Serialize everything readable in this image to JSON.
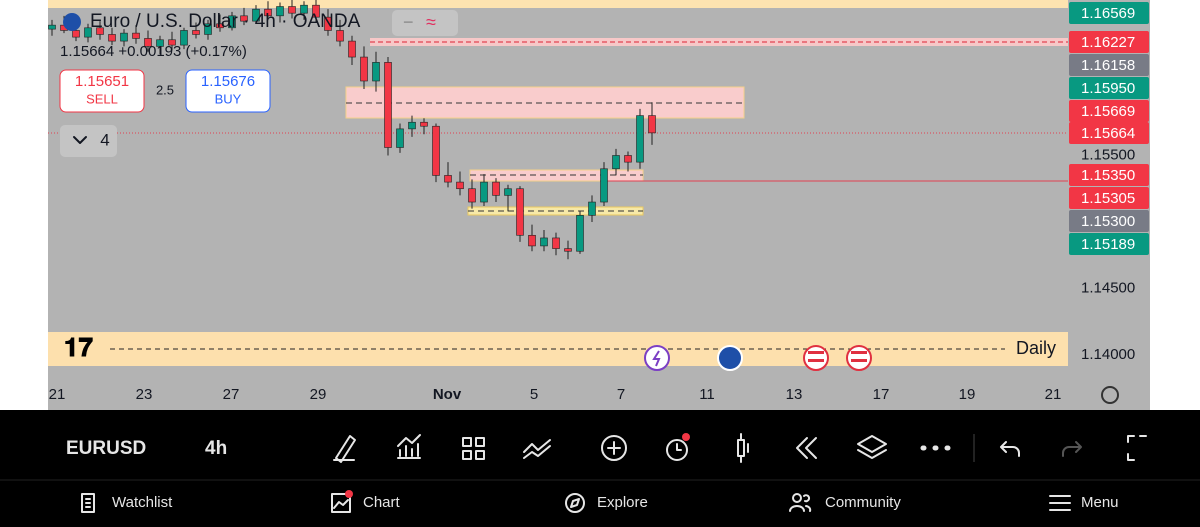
{
  "header": {
    "symbol_title": "Euro / U.S. Dollar · 4h · OANDA",
    "price_change": "1.15664 +0.00193 (+0.17%)",
    "sell_price": "1.15651",
    "sell_label": "SELL",
    "spread": "2.5",
    "buy_price": "1.15676",
    "buy_label": "BUY",
    "collapse_count": "4"
  },
  "chart": {
    "ylim": [
      1.13827,
      1.16669
    ],
    "up_color": "#089981",
    "down_color": "#f23645",
    "candles": [
      [
        1.1645,
        1.1652,
        1.164,
        1.1648
      ],
      [
        1.1648,
        1.1655,
        1.1642,
        1.1644
      ],
      [
        1.1644,
        1.165,
        1.1636,
        1.1639
      ],
      [
        1.1639,
        1.1649,
        1.1635,
        1.1646
      ],
      [
        1.1646,
        1.1651,
        1.1637,
        1.1641
      ],
      [
        1.1641,
        1.1646,
        1.1633,
        1.1636
      ],
      [
        1.1636,
        1.1645,
        1.1632,
        1.1642
      ],
      [
        1.1642,
        1.1648,
        1.1634,
        1.1638
      ],
      [
        1.1638,
        1.1644,
        1.1628,
        1.1632
      ],
      [
        1.1632,
        1.164,
        1.1626,
        1.1637
      ],
      [
        1.1637,
        1.1643,
        1.1629,
        1.1633
      ],
      [
        1.1633,
        1.1646,
        1.163,
        1.1644
      ],
      [
        1.1644,
        1.165,
        1.1638,
        1.1641
      ],
      [
        1.1641,
        1.1652,
        1.1637,
        1.1649
      ],
      [
        1.1649,
        1.1656,
        1.1643,
        1.1646
      ],
      [
        1.1646,
        1.1658,
        1.1644,
        1.1655
      ],
      [
        1.1655,
        1.1661,
        1.1648,
        1.1651
      ],
      [
        1.1651,
        1.1663,
        1.1649,
        1.166
      ],
      [
        1.166,
        1.1666,
        1.1652,
        1.1655
      ],
      [
        1.1655,
        1.1665,
        1.165,
        1.1662
      ],
      [
        1.1662,
        1.1667,
        1.1653,
        1.1657
      ],
      [
        1.1657,
        1.1666,
        1.1652,
        1.1663
      ],
      [
        1.1663,
        1.1667,
        1.165,
        1.1654
      ],
      [
        1.1654,
        1.166,
        1.164,
        1.1644
      ],
      [
        1.1644,
        1.1652,
        1.1632,
        1.1636
      ],
      [
        1.1636,
        1.164,
        1.1618,
        1.1624
      ],
      [
        1.1624,
        1.1632,
        1.16,
        1.1606
      ],
      [
        1.1606,
        1.1628,
        1.1598,
        1.162
      ],
      [
        1.162,
        1.1624,
        1.155,
        1.1556
      ],
      [
        1.1556,
        1.1574,
        1.1552,
        1.157
      ],
      [
        1.157,
        1.158,
        1.1564,
        1.1575
      ],
      [
        1.1575,
        1.1578,
        1.1566,
        1.1572
      ],
      [
        1.1572,
        1.1574,
        1.153,
        1.1535
      ],
      [
        1.1535,
        1.1545,
        1.1526,
        1.153
      ],
      [
        1.153,
        1.1538,
        1.152,
        1.1525
      ],
      [
        1.1525,
        1.1532,
        1.151,
        1.1515
      ],
      [
        1.1515,
        1.1536,
        1.1512,
        1.153
      ],
      [
        1.153,
        1.1533,
        1.1515,
        1.152
      ],
      [
        1.152,
        1.1528,
        1.1508,
        1.1525
      ],
      [
        1.1525,
        1.1527,
        1.1485,
        1.149
      ],
      [
        1.149,
        1.1498,
        1.1478,
        1.1482
      ],
      [
        1.1482,
        1.1494,
        1.1478,
        1.1488
      ],
      [
        1.1488,
        1.1492,
        1.1475,
        1.148
      ],
      [
        1.148,
        1.1486,
        1.1472,
        1.1478
      ],
      [
        1.1478,
        1.1508,
        1.1476,
        1.1505
      ],
      [
        1.1505,
        1.152,
        1.15,
        1.1515
      ],
      [
        1.1515,
        1.1545,
        1.1512,
        1.154
      ],
      [
        1.154,
        1.1555,
        1.1535,
        1.155
      ],
      [
        1.155,
        1.1553,
        1.1538,
        1.1545
      ],
      [
        1.1545,
        1.1585,
        1.154,
        1.158
      ],
      [
        1.158,
        1.159,
        1.1558,
        1.1567
      ]
    ],
    "price_scale": [
      {
        "value": 1.155,
        "label": "1.15500"
      },
      {
        "value": 1.145,
        "label": "1.14500"
      },
      {
        "value": 1.14,
        "label": "1.14000"
      }
    ],
    "price_labels": [
      {
        "value": 1.16569,
        "label": "1.16569",
        "color": "#089981"
      },
      {
        "value": 1.16227,
        "label": "1.16227",
        "color": "#f23645"
      },
      {
        "value": 1.16158,
        "label": "1.16158",
        "color": "#787b86"
      },
      {
        "value": 1.1595,
        "label": "1.15950",
        "color": "#089981"
      },
      {
        "value": 1.15669,
        "label": "1.15669",
        "color": "#f23645"
      },
      {
        "value": 1.15664,
        "label": "1.15664",
        "color": "#f23645"
      },
      {
        "value": 1.1535,
        "label": "1.15350",
        "color": "#f23645"
      },
      {
        "value": 1.15305,
        "label": "1.15305",
        "color": "#f23645"
      },
      {
        "value": 1.153,
        "label": "1.15300",
        "color": "#787b86"
      },
      {
        "value": 1.15189,
        "label": "1.15189",
        "color": "#089981"
      }
    ],
    "x_labels": [
      "21",
      "23",
      "27",
      "29",
      "Nov",
      "5",
      "7",
      "11",
      "13",
      "17",
      "19",
      "21"
    ],
    "timeframe_label": "Daily"
  },
  "toolbar": {
    "symbol": "EURUSD",
    "interval": "4h"
  },
  "nav": [
    "Watchlist",
    "Chart",
    "Explore",
    "Community",
    "Menu"
  ]
}
